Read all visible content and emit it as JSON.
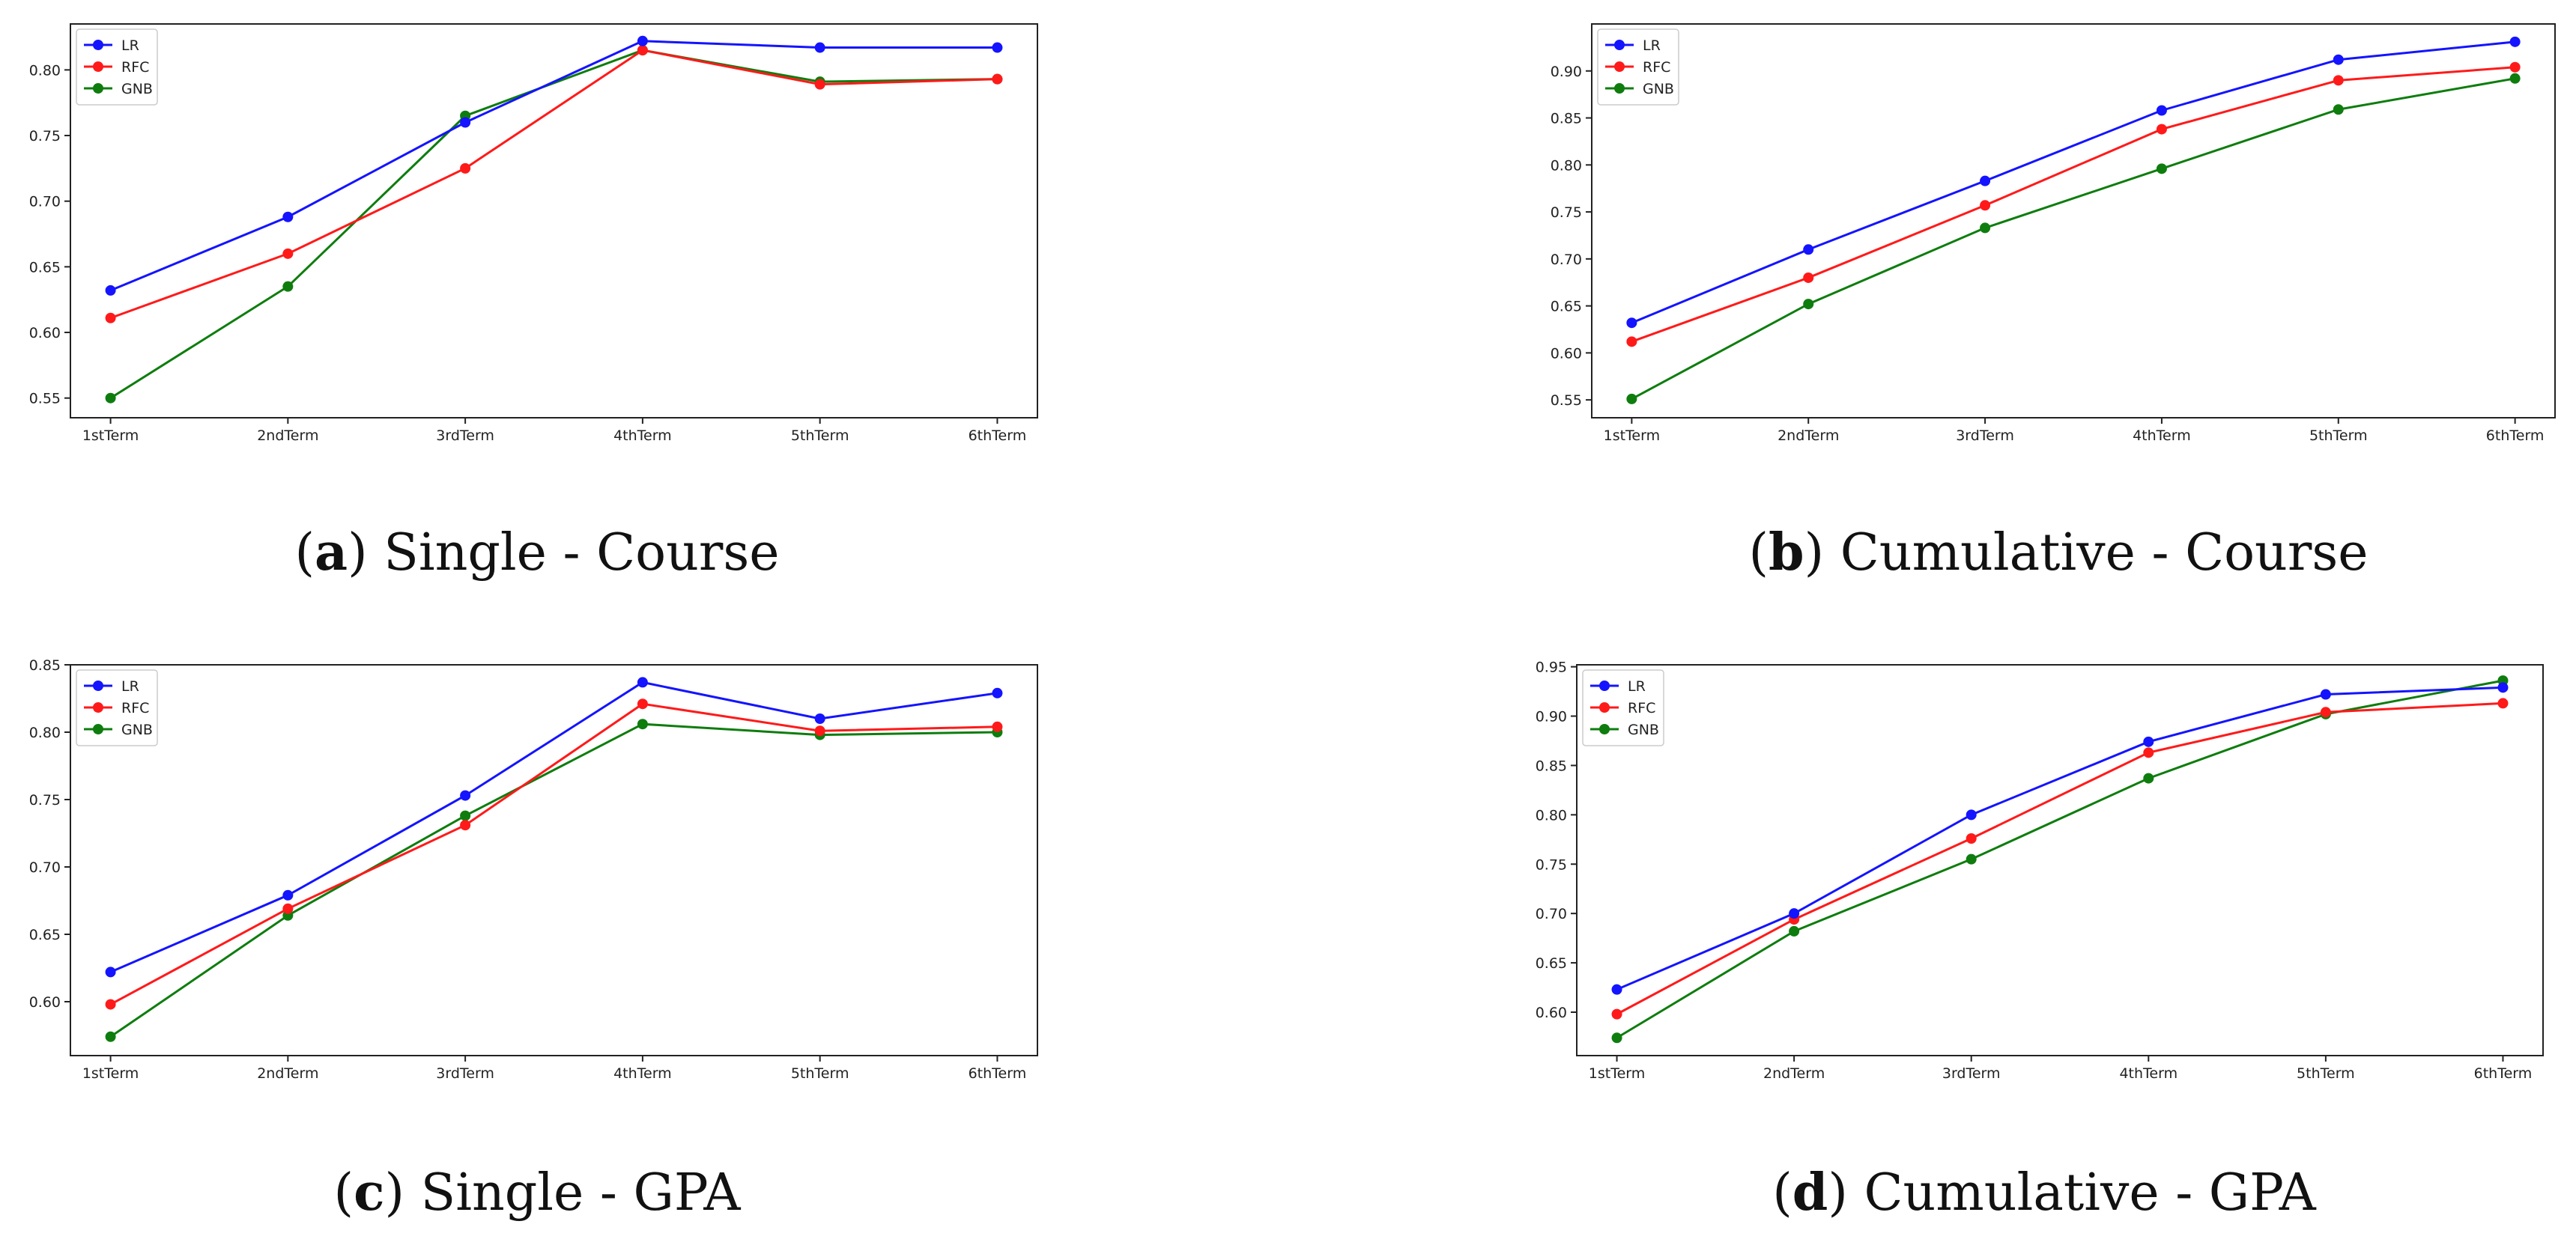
{
  "figure": {
    "captions": [
      {
        "letter": "a",
        "text": "Single - Course"
      },
      {
        "letter": "b",
        "text": "Cumulative - Course"
      },
      {
        "letter": "c",
        "text": "Single - GPA"
      },
      {
        "letter": "d",
        "text": "Cumulative - GPA"
      }
    ],
    "series_colors": {
      "LR": "#1414ff",
      "RFC": "#ff1a1a",
      "GNB": "#0e7d0e"
    }
  },
  "chart_data": [
    {
      "type": "line",
      "title": "Single - Course",
      "categories": [
        "1stTerm",
        "2ndTerm",
        "3rdTerm",
        "4thTerm",
        "5thTerm",
        "6thTerm"
      ],
      "ylim": [
        0.535,
        0.835
      ],
      "yticks": [
        "0.55",
        "0.60",
        "0.65",
        "0.70",
        "0.75",
        "0.80"
      ],
      "legend": "top-left",
      "series": [
        {
          "name": "LR",
          "values": [
            0.632,
            0.688,
            0.76,
            0.822,
            0.817,
            0.817
          ]
        },
        {
          "name": "RFC",
          "values": [
            0.611,
            0.66,
            0.725,
            0.815,
            0.789,
            0.793
          ]
        },
        {
          "name": "GNB",
          "values": [
            0.55,
            0.635,
            0.765,
            0.815,
            0.791,
            0.793
          ]
        }
      ]
    },
    {
      "type": "line",
      "title": "Cumulative - Course",
      "categories": [
        "1stTerm",
        "2ndTerm",
        "3rdTerm",
        "4thTerm",
        "5thTerm",
        "6thTerm"
      ],
      "ylim": [
        0.531,
        0.95
      ],
      "yticks": [
        "0.55",
        "0.60",
        "0.65",
        "0.70",
        "0.75",
        "0.80",
        "0.85",
        "0.90"
      ],
      "legend": "top-left",
      "series": [
        {
          "name": "LR",
          "values": [
            0.632,
            0.71,
            0.783,
            0.858,
            0.912,
            0.931
          ]
        },
        {
          "name": "RFC",
          "values": [
            0.612,
            0.68,
            0.757,
            0.838,
            0.89,
            0.904
          ]
        },
        {
          "name": "GNB",
          "values": [
            0.551,
            0.652,
            0.733,
            0.796,
            0.859,
            0.892
          ]
        }
      ]
    },
    {
      "type": "line",
      "title": "Single - GPA",
      "categories": [
        "1stTerm",
        "2ndTerm",
        "3rdTerm",
        "4thTerm",
        "5thTerm",
        "6thTerm"
      ],
      "ylim": [
        0.56,
        0.85
      ],
      "yticks": [
        "0.60",
        "0.65",
        "0.70",
        "0.75",
        "0.80",
        "0.85"
      ],
      "legend": "top-left",
      "series": [
        {
          "name": "LR",
          "values": [
            0.622,
            0.679,
            0.753,
            0.837,
            0.81,
            0.829
          ]
        },
        {
          "name": "RFC",
          "values": [
            0.598,
            0.669,
            0.731,
            0.821,
            0.801,
            0.804
          ]
        },
        {
          "name": "GNB",
          "values": [
            0.574,
            0.664,
            0.738,
            0.806,
            0.798,
            0.8
          ]
        }
      ]
    },
    {
      "type": "line",
      "title": "Cumulative - GPA",
      "categories": [
        "1stTerm",
        "2ndTerm",
        "3rdTerm",
        "4thTerm",
        "5thTerm",
        "6thTerm"
      ],
      "ylim": [
        0.556,
        0.952
      ],
      "yticks": [
        "0.60",
        "0.65",
        "0.70",
        "0.75",
        "0.80",
        "0.85",
        "0.90",
        "0.95"
      ],
      "legend": "top-left",
      "series": [
        {
          "name": "LR",
          "values": [
            0.623,
            0.7,
            0.8,
            0.874,
            0.922,
            0.929
          ]
        },
        {
          "name": "RFC",
          "values": [
            0.598,
            0.694,
            0.776,
            0.863,
            0.904,
            0.913
          ]
        },
        {
          "name": "GNB",
          "values": [
            0.574,
            0.682,
            0.755,
            0.837,
            0.902,
            0.936
          ]
        }
      ]
    }
  ]
}
